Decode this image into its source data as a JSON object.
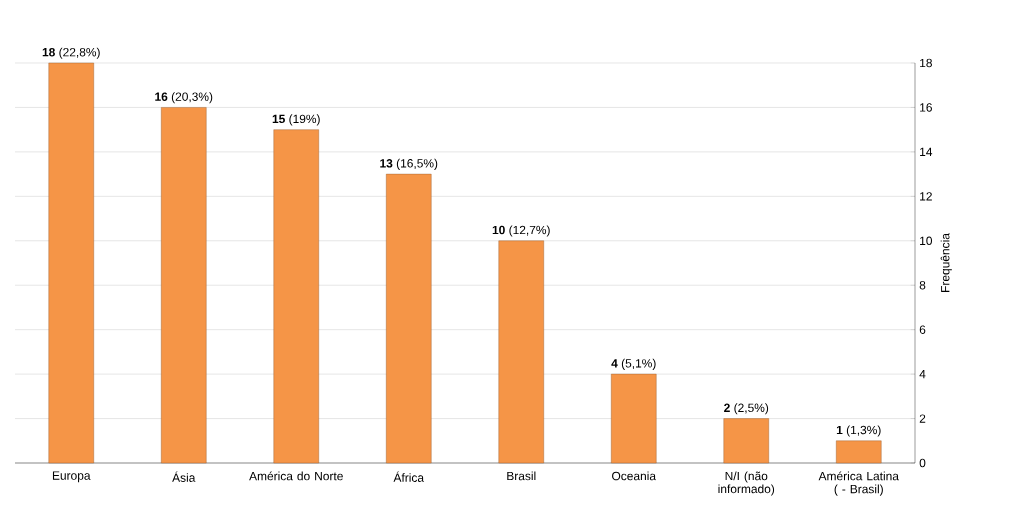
{
  "chart_data": {
    "type": "bar",
    "ylabel": "Frequência",
    "categories": [
      "Europa",
      "Ásia",
      "América do Norte",
      "África",
      "Brasil",
      "Oceania",
      "N/I (não informado)",
      "América Latina ( - Brasil)"
    ],
    "values": [
      18,
      16,
      15,
      13,
      10,
      4,
      2,
      1
    ],
    "value_labels": [
      "**18** (22,8%)",
      "**16** (20,3%)",
      "**15** (19%)",
      "**13** (16,5%)",
      "**10** (12,7%)",
      "**4** (5,1%)",
      "**2** (2,5%)",
      "**1** (1,3%)"
    ],
    "color": "#f59547",
    "ylim": [
      0,
      18
    ],
    "yticks": [
      0,
      2,
      4,
      6,
      8,
      10,
      12,
      14,
      16,
      18
    ],
    "grid": "y"
  }
}
